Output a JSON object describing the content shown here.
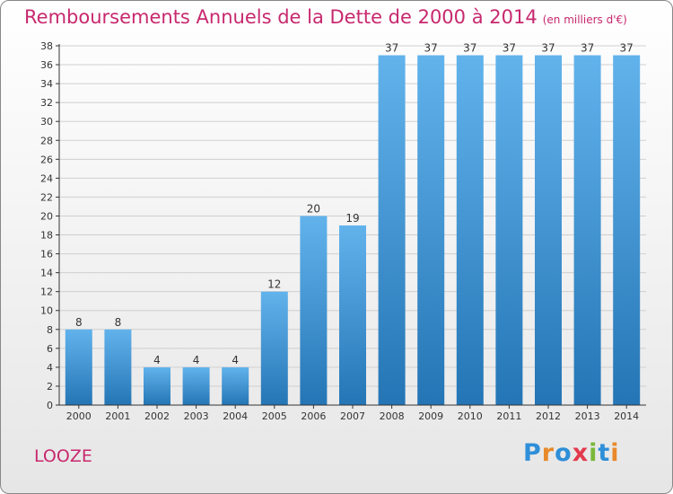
{
  "chart_data": {
    "type": "bar",
    "title": "Remboursements Annuels de la Dette de 2000 à 2014",
    "subtitle": "(en milliers d'€)",
    "categories": [
      "2000",
      "2001",
      "2002",
      "2003",
      "2004",
      "2005",
      "2006",
      "2007",
      "2008",
      "2009",
      "2010",
      "2011",
      "2012",
      "2013",
      "2014"
    ],
    "values": [
      8,
      8,
      4,
      4,
      4,
      12,
      20,
      19,
      37,
      37,
      37,
      37,
      37,
      37,
      37
    ],
    "ylim": [
      0,
      38
    ],
    "ytick_step": 2,
    "grid": true,
    "legend": "none",
    "colors": {
      "bar_top": "#62b3ec",
      "bar_bottom": "#2475b5",
      "title": "#c8286e"
    }
  },
  "place": "LOOZE",
  "brand": {
    "text": "Proxiti",
    "letter_colors": [
      "#2f8fd8",
      "#e8892b",
      "#2f8fd8",
      "#e23a4d",
      "#7ab83a",
      "#2f8fd8",
      "#e8892b"
    ]
  }
}
